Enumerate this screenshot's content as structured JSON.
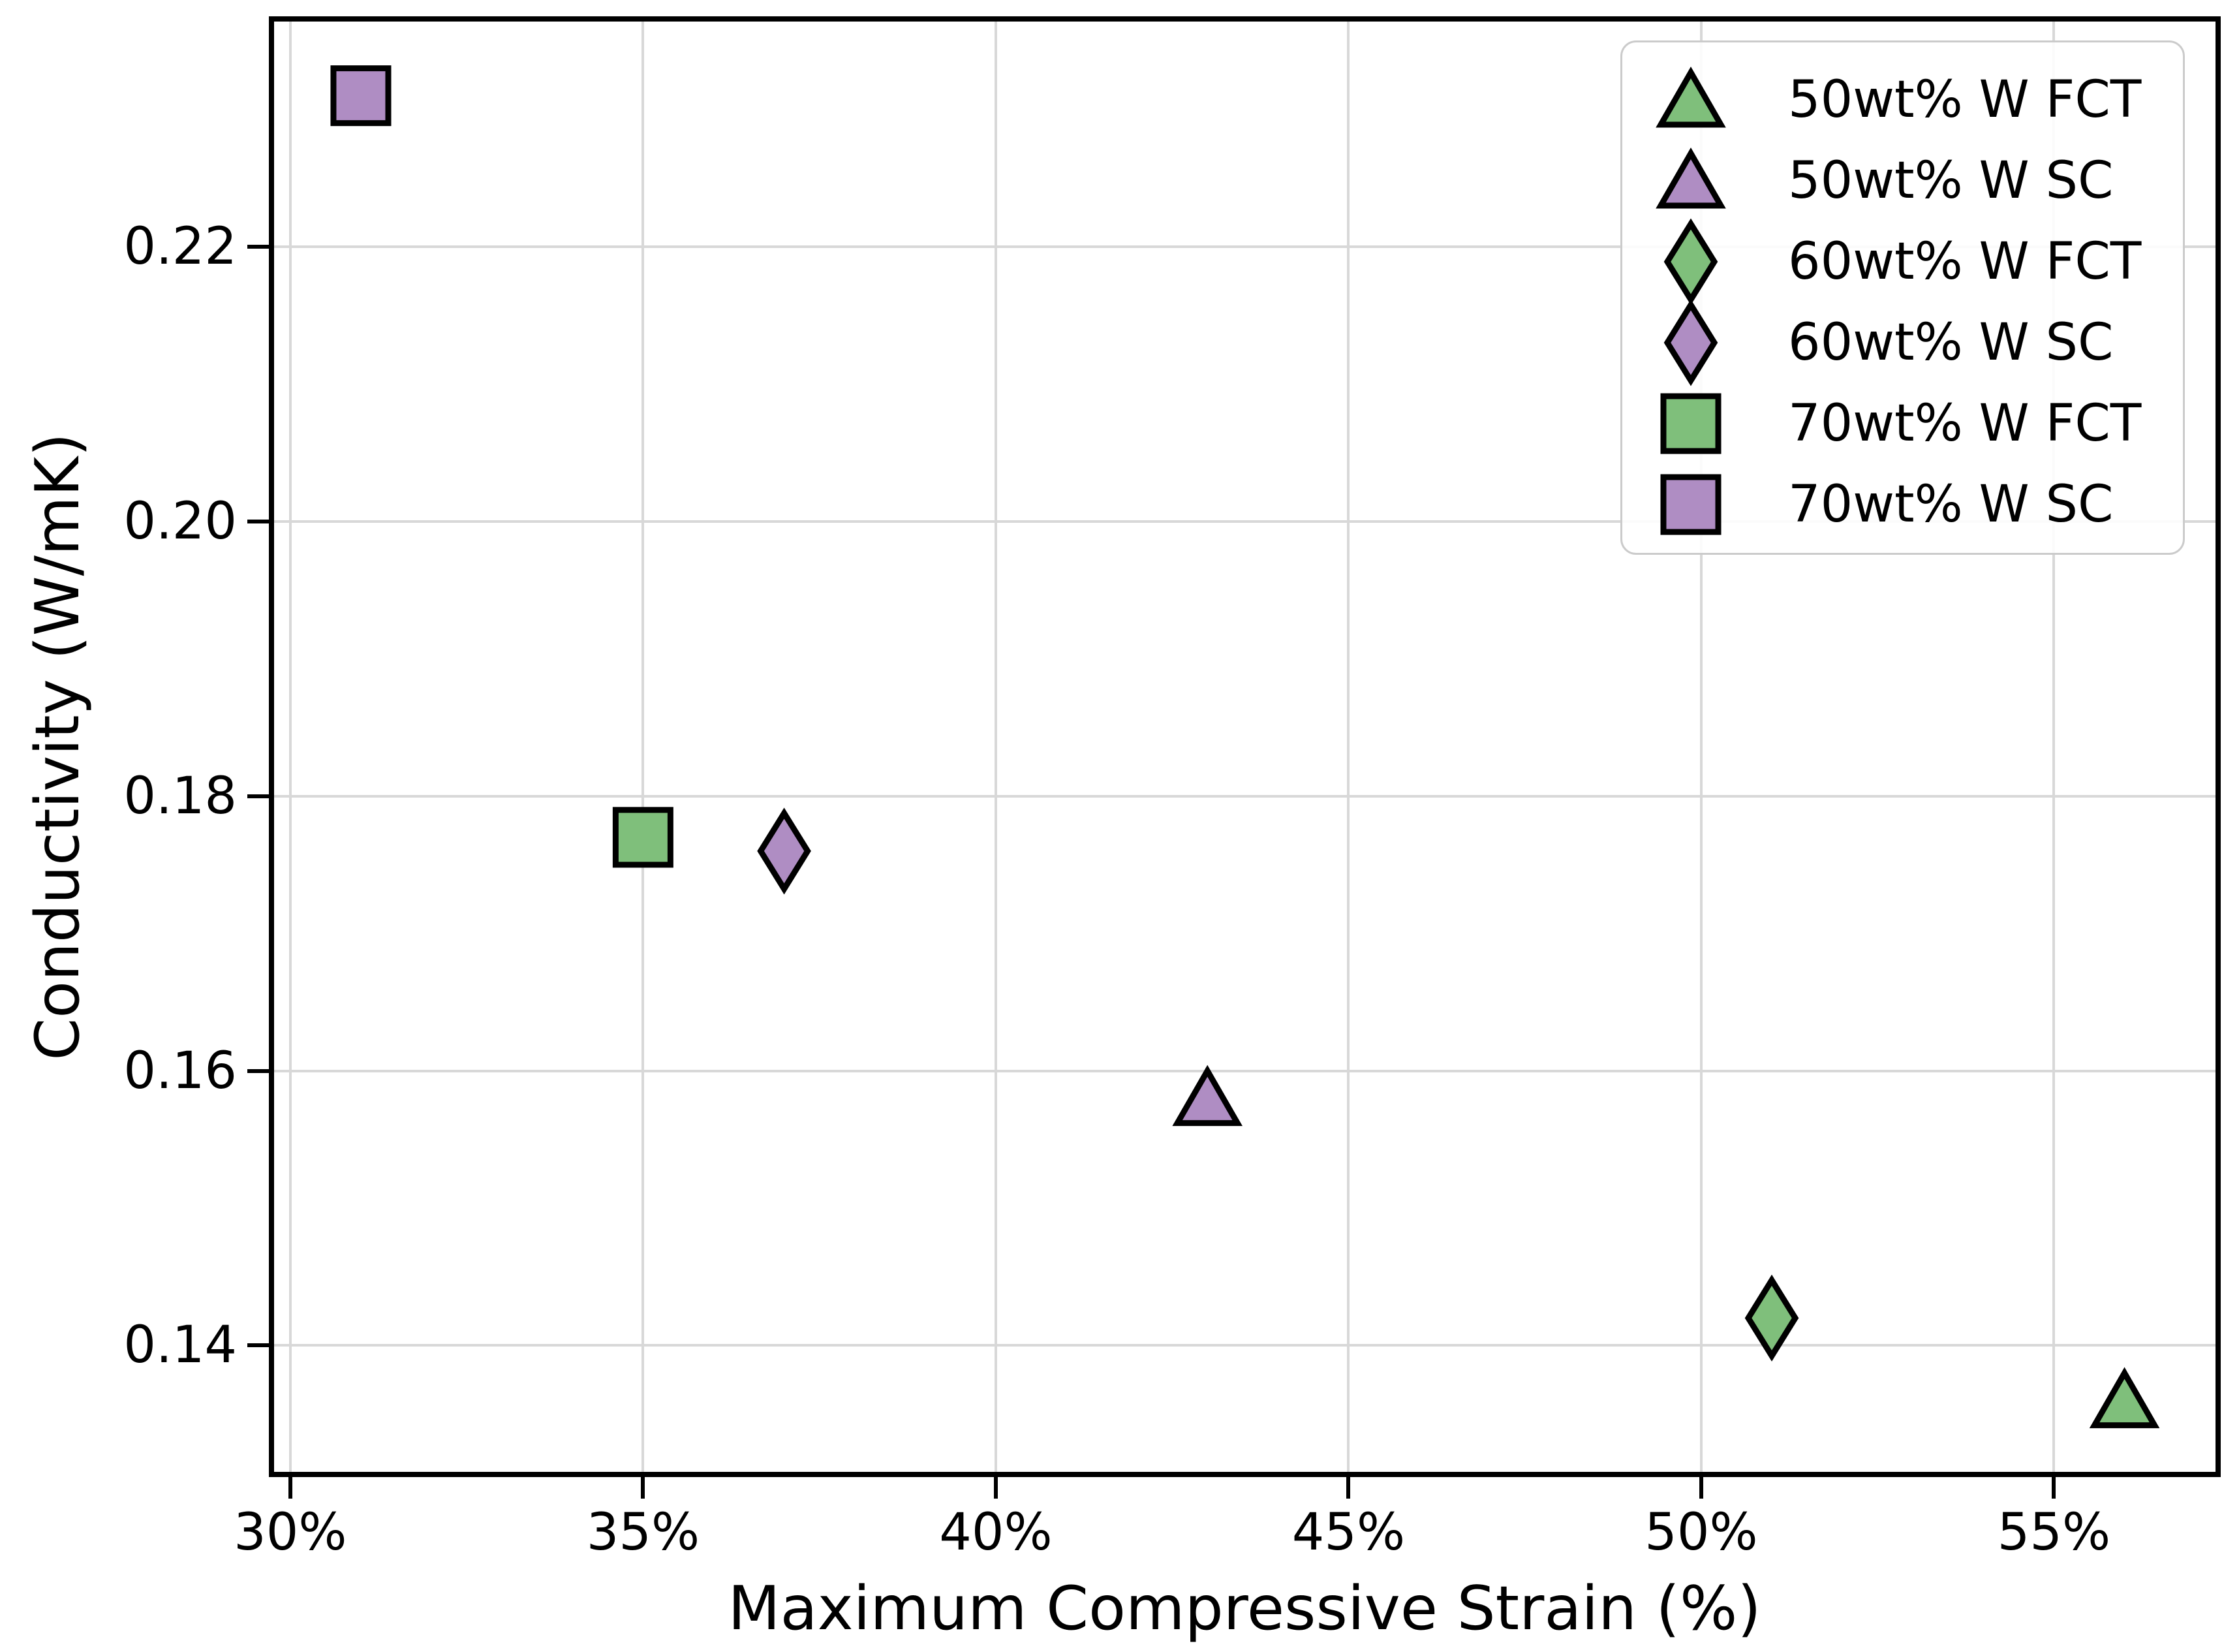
{
  "chart_data": {
    "type": "scatter",
    "title": "",
    "xlabel": "Maximum Compressive Strain (%)",
    "ylabel": "Conductivity (W/mK)",
    "xlim": [
      29.77,
      57.29
    ],
    "ylim": [
      0.1308,
      0.2364
    ],
    "grid": true,
    "legend_position": "upper right",
    "x_ticks": [
      {
        "value": 30,
        "label": "30%"
      },
      {
        "value": 35,
        "label": "35%"
      },
      {
        "value": 40,
        "label": "40%"
      },
      {
        "value": 45,
        "label": "45%"
      },
      {
        "value": 50,
        "label": "50%"
      },
      {
        "value": 55,
        "label": "55%"
      }
    ],
    "y_ticks": [
      {
        "value": 0.14,
        "label": "0.14"
      },
      {
        "value": 0.16,
        "label": "0.16"
      },
      {
        "value": 0.18,
        "label": "0.18"
      },
      {
        "value": 0.2,
        "label": "0.20"
      },
      {
        "value": 0.22,
        "label": "0.22"
      }
    ],
    "series": [
      {
        "name": "50wt% W FCT",
        "marker": "triangle",
        "fill": "#7fbf7b",
        "edge": "#000000",
        "points": [
          [
            56,
            0.136
          ]
        ]
      },
      {
        "name": "50wt% W SC",
        "marker": "triangle",
        "fill": "#af8dc3",
        "edge": "#000000",
        "points": [
          [
            43,
            0.158
          ]
        ]
      },
      {
        "name": "60wt% W FCT",
        "marker": "diamond",
        "fill": "#7fbf7b",
        "edge": "#000000",
        "points": [
          [
            51,
            0.142
          ]
        ]
      },
      {
        "name": "60wt% W SC",
        "marker": "diamond",
        "fill": "#af8dc3",
        "edge": "#000000",
        "points": [
          [
            37,
            0.176
          ]
        ]
      },
      {
        "name": "70wt% W FCT",
        "marker": "square",
        "fill": "#7fbf7b",
        "edge": "#000000",
        "points": [
          [
            35,
            0.177
          ]
        ]
      },
      {
        "name": "70wt% W SC",
        "marker": "square",
        "fill": "#af8dc3",
        "edge": "#000000",
        "points": [
          [
            31,
            0.231
          ]
        ]
      }
    ],
    "colors": {
      "grid": "#d8d8d8",
      "spine": "#000000",
      "legend_border": "#cbcbcb",
      "text": "#000000",
      "background": "#ffffff"
    }
  }
}
